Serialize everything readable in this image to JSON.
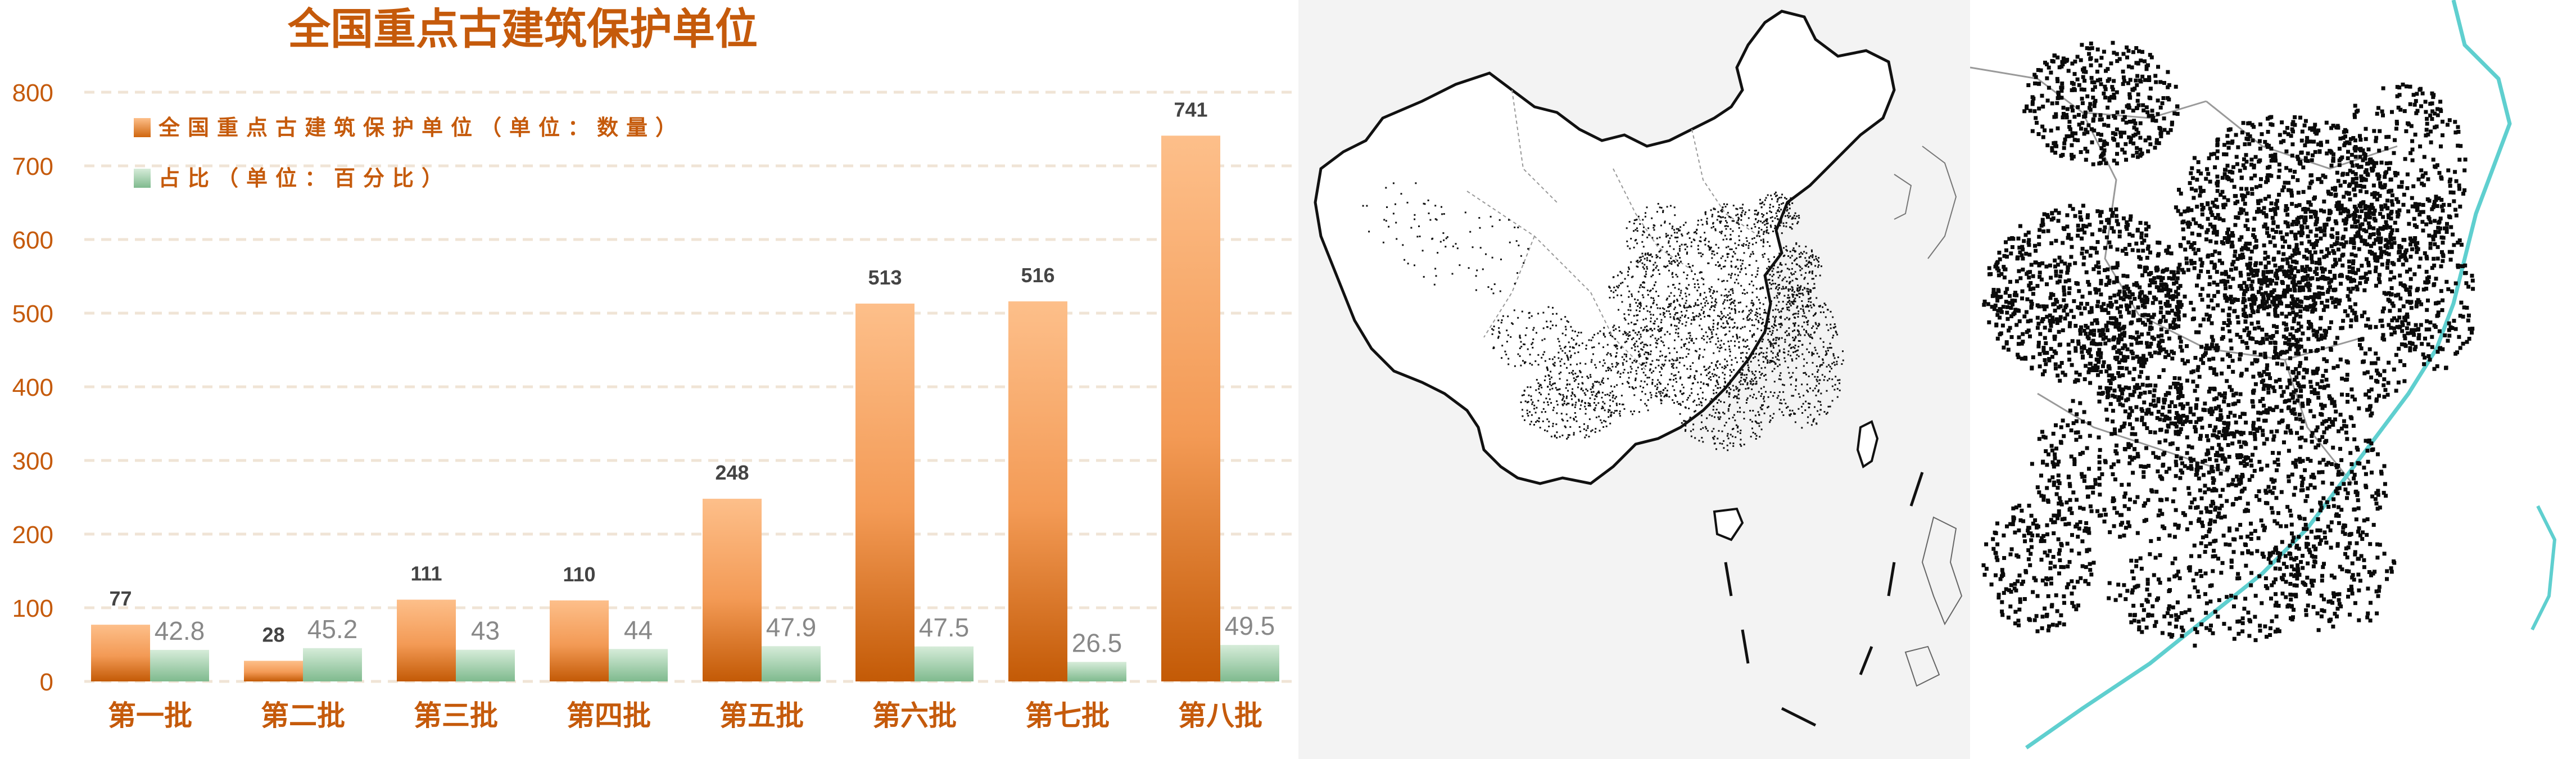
{
  "chart_data": {
    "type": "bar",
    "title": "全国重点古建筑保护单位",
    "categories": [
      "第一批",
      "第二批",
      "第三批",
      "第四批",
      "第五批",
      "第六批",
      "第七批",
      "第八批"
    ],
    "series": [
      {
        "name": "全国重点古建筑保护单位（单位：数量）",
        "values": [
          77,
          28,
          111,
          110,
          248,
          513,
          516,
          741
        ]
      },
      {
        "name": "占比（单位：百分比）",
        "values": [
          42.8,
          45.2,
          43,
          44,
          47.9,
          47.5,
          26.5,
          49.5
        ]
      }
    ],
    "yticks": [
      0,
      100,
      200,
      300,
      400,
      500,
      600,
      700,
      800
    ],
    "ylim": [
      0,
      800
    ],
    "grid": true,
    "legend_position": "top-left",
    "colors": {
      "count_top": "#fdbf8a",
      "count_bottom": "#c35a06",
      "share_top": "#cfe8d3",
      "share_bottom": "#7fba8e",
      "title": "#c55a0b",
      "category_label": "#c55a0b",
      "grid": "#f0e4d6",
      "count_label": "#444444",
      "share_label": "#888888"
    }
  },
  "images": {
    "china_map": {
      "kind": "outline map with black site dots"
    },
    "zoomed_map": {
      "kind": "zoomed map detail with dense black dots and cyan coastline"
    }
  }
}
